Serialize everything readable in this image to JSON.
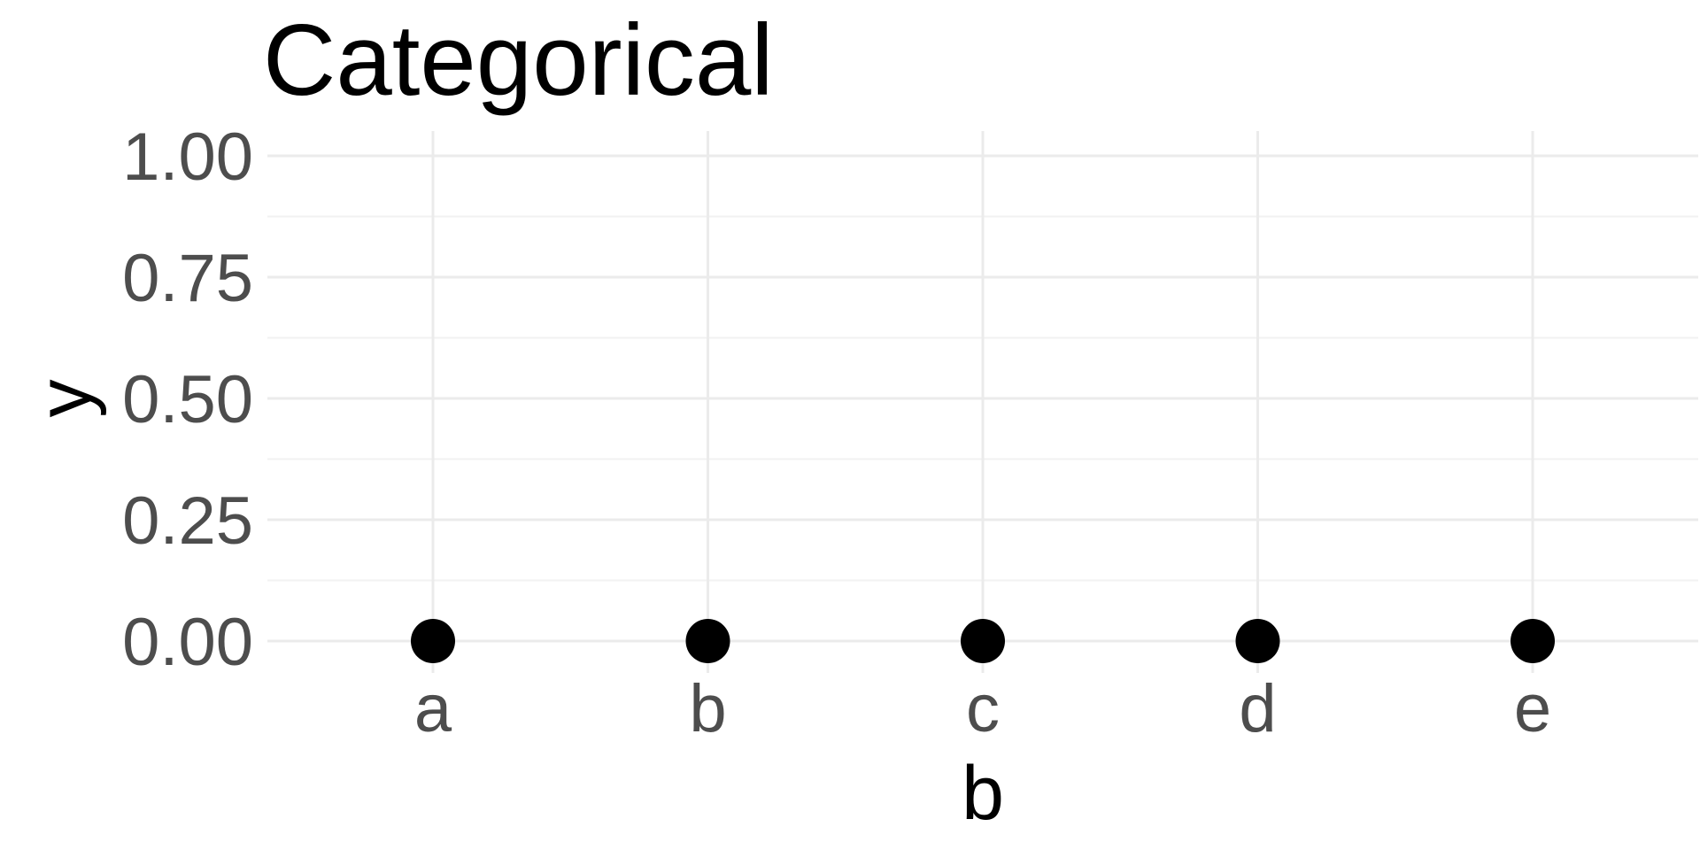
{
  "chart_data": {
    "type": "scatter",
    "title": "Categorical",
    "xlabel": "b",
    "ylabel": "y",
    "categories": [
      "a",
      "b",
      "c",
      "d",
      "e"
    ],
    "series": [
      {
        "values": [
          0,
          0,
          0,
          0,
          0
        ]
      }
    ],
    "ylim": [
      0,
      1
    ],
    "yticks": [
      "0.00",
      "0.25",
      "0.50",
      "0.75",
      "1.00"
    ],
    "grid": true,
    "colors": {
      "point": "#000000",
      "grid_major": "#ebebeb",
      "grid_minor": "#f2f2f2",
      "tick_label": "#4d4d4d"
    }
  }
}
